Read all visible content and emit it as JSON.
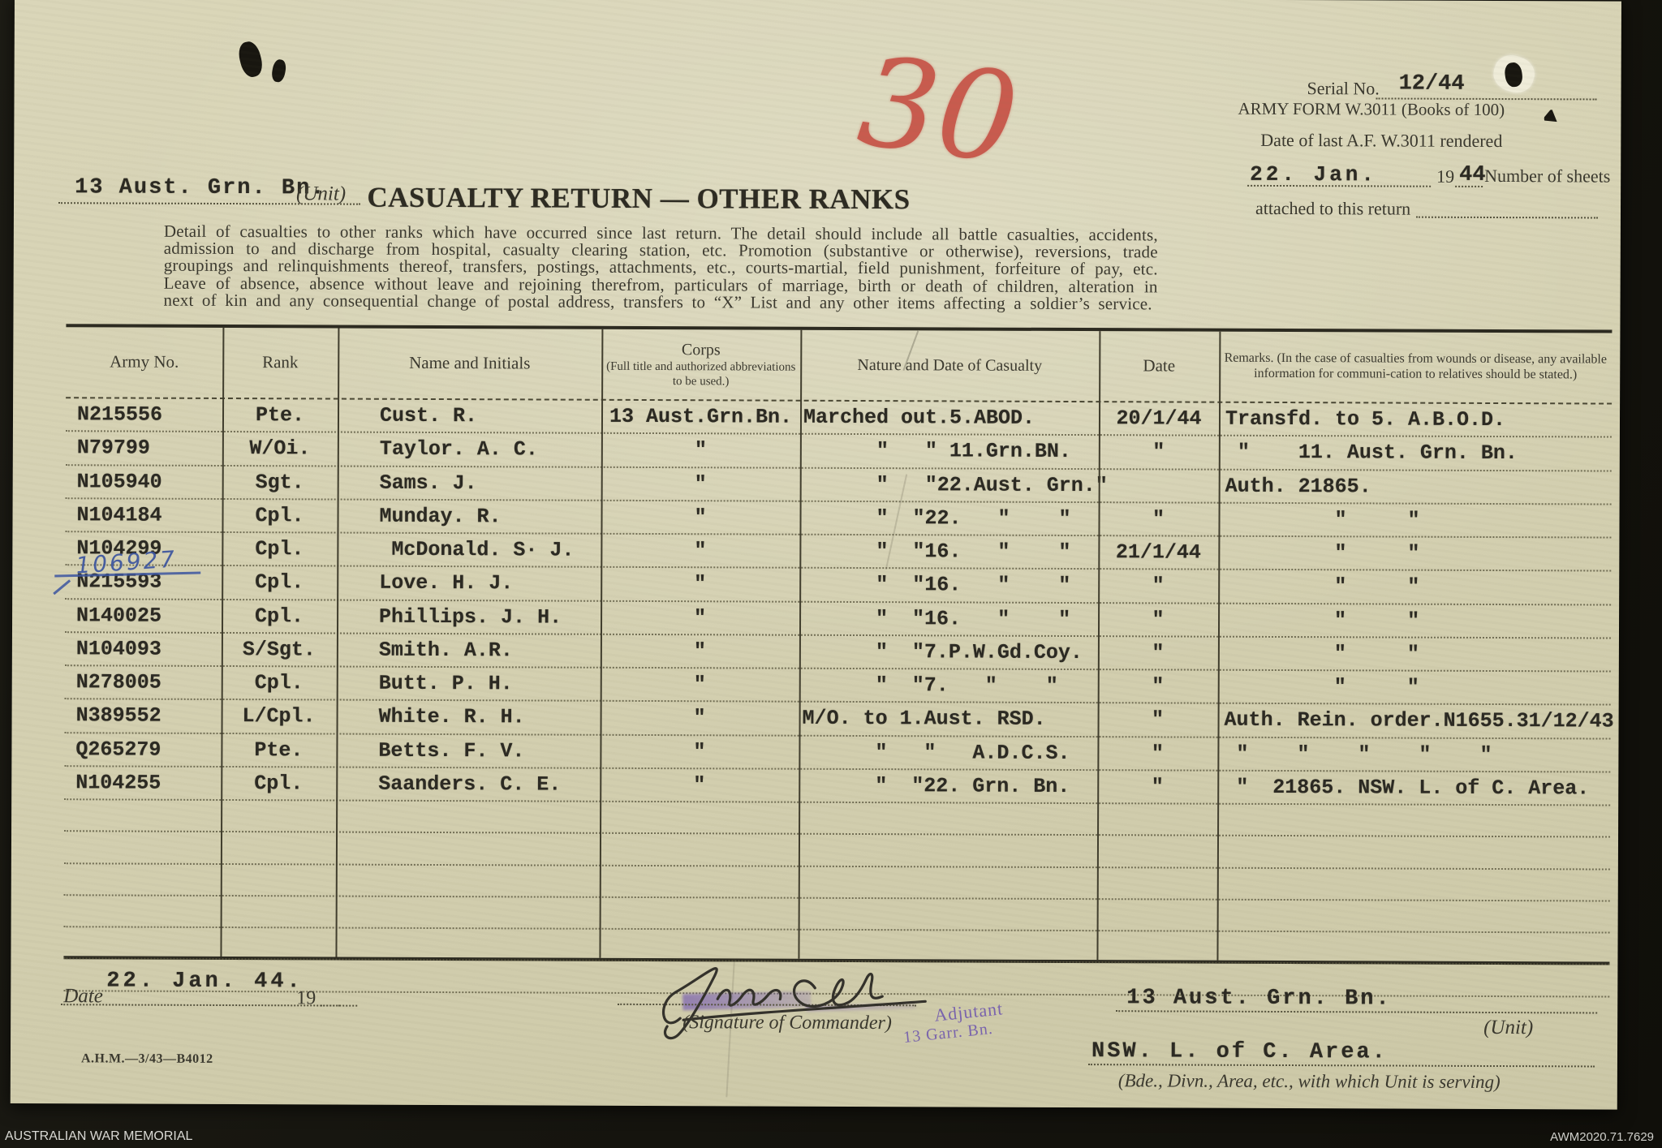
{
  "form": {
    "serial_label": "Serial No.",
    "serial_value": "12/44",
    "form_name": "ARMY FORM W.3011 (Books of 100)",
    "date_last_label": "Date of last A.F. W.3011 rendered",
    "date_last_value": "22. Jan.",
    "year_prefix": "19",
    "year_value": "44",
    "sheets_label_1": "Number of sheets",
    "sheets_label_2": "attached to this return",
    "unit_value": "13 Aust. Grn. Bn.",
    "unit_label": "(Unit)",
    "title": "CASUALTY RETURN — OTHER RANKS",
    "instructions": "Detail of casualties to other ranks which have occurred since last return.  The detail should include all battle casualties, accidents, admission to and discharge from hospital, casualty clearing station, etc.  Promotion (substantive or otherwise), reversions, trade groupings and relinquishments thereof, transfers, postings, attachments, etc., courts-martial, field punishment, forfeiture of pay, etc.  Leave of absence, absence without leave and rejoining therefrom, particulars of marriage, birth or death of children, alteration in next of kin and any consequential change of postal address, transfers to “X” List and any other items affecting a soldier’s service."
  },
  "annotations": {
    "red_number": "30",
    "blue_correction": "106927",
    "stamp_line1": "Adjutant",
    "stamp_line2": "13 Garr. Bn."
  },
  "table": {
    "headers": {
      "army_no": "Army No.",
      "rank": "Rank",
      "name": "Name and Initials",
      "corps_title": "Corps",
      "corps_sub": "(Full title and authorized abbreviations to be used.)",
      "nature": "Nature and Date of Casualty",
      "date": "Date",
      "remarks": "Remarks.  (In the case of casualties from wounds or disease, any available information for communi-cation to relatives should be stated.)"
    },
    "column_keys": [
      "army_no",
      "rank",
      "name",
      "corps",
      "nature",
      "date",
      "remarks"
    ],
    "empty_row_count": 6,
    "rows": [
      {
        "army_no": "N215556",
        "rank": "Pte.",
        "name": "Cust. R.",
        "corps": "13 Aust.Grn.Bn.",
        "nature": "Marched out.5.ABOD.",
        "date": "20/1/44",
        "remarks": "Transfd. to 5. A.B.O.D."
      },
      {
        "army_no": "N79799",
        "rank": "W/Oi.",
        "name": "Taylor. A. C.",
        "corps": "\"",
        "nature": "      \"   \" 11.Grn.BN.",
        "date": "\"",
        "remarks": " \"    11. Aust. Grn. Bn."
      },
      {
        "army_no": "N105940",
        "rank": "Sgt.",
        "name": "Sams. J.",
        "corps": "\"",
        "nature": "      \"   \"22.Aust. Grn.\"",
        "date": "",
        "remarks": "Auth. 21865."
      },
      {
        "army_no": "N104184",
        "rank": "Cpl.",
        "name": "Munday. R.",
        "corps": "\"",
        "nature": "      \"  \"22.   \"    \"",
        "date": "\"",
        "remarks": "         \"     \""
      },
      {
        "army_no": "N104299",
        "rank": "Cpl.",
        "name": " McDonald. S· J.",
        "corps": "\"",
        "nature": "      \"  \"16.   \"    \"",
        "date": "21/1/44",
        "remarks": "         \"     \""
      },
      {
        "army_no": "N215593",
        "rank": "Cpl.",
        "name": "Love. H. J.",
        "corps": "\"",
        "nature": "      \"  \"16.   \"    \"",
        "date": "\"",
        "remarks": "         \"     \""
      },
      {
        "army_no": "N140025",
        "rank": "Cpl.",
        "name": "Phillips. J. H.",
        "corps": "\"",
        "nature": "      \"  \"16.   \"    \"",
        "date": "\"",
        "remarks": "         \"     \""
      },
      {
        "army_no": "N104093",
        "rank": "S/Sgt.",
        "name": "Smith. A.R.",
        "corps": "\"",
        "nature": "      \"  \"7.P.W.Gd.Coy.",
        "date": "\"",
        "remarks": "         \"     \""
      },
      {
        "army_no": "N278005",
        "rank": "Cpl.",
        "name": "Butt. P. H.",
        "corps": "\"",
        "nature": "      \"  \"7.   \"    \"",
        "date": "\"",
        "remarks": "         \"     \""
      },
      {
        "army_no": "N389552",
        "rank": "L/Cpl.",
        "name": "White. R. H.",
        "corps": "\"",
        "nature": "M/O. to 1.Aust. RSD.",
        "date": "\"",
        "remarks": "Auth. Rein. order.N1655.31/12/43"
      },
      {
        "army_no": "Q265279",
        "rank": "Pte.",
        "name": "Betts. F. V.",
        "corps": "\"",
        "nature": "      \"   \"   A.D.C.S.",
        "date": "\"",
        "remarks": " \"    \"    \"    \"    \""
      },
      {
        "army_no": "N104255",
        "rank": "Cpl.",
        "name": "Saanders. C. E.",
        "corps": "\"",
        "nature": "      \"  \"22. Grn. Bn.",
        "date": "\"",
        "remarks": " \"  21865. NSW. L. of C. Area."
      }
    ]
  },
  "footer": {
    "date_label": "Date",
    "date_value": "22. Jan. 44.",
    "year_prefix": "19",
    "signature_label": "(Signature of Commander)",
    "unit_value": "13 Aust. Grn. Bn.",
    "unit_label": "(Unit)",
    "area_value": "NSW. L. of C. Area.",
    "area_label": "(Bde., Divn., Area, etc., with which Unit is serving)",
    "print_code": "A.H.M.—3/43—B4012"
  },
  "watermark": {
    "left": "AUSTRALIAN WAR MEMORIAL",
    "right": "AWM2020.71.7629"
  }
}
